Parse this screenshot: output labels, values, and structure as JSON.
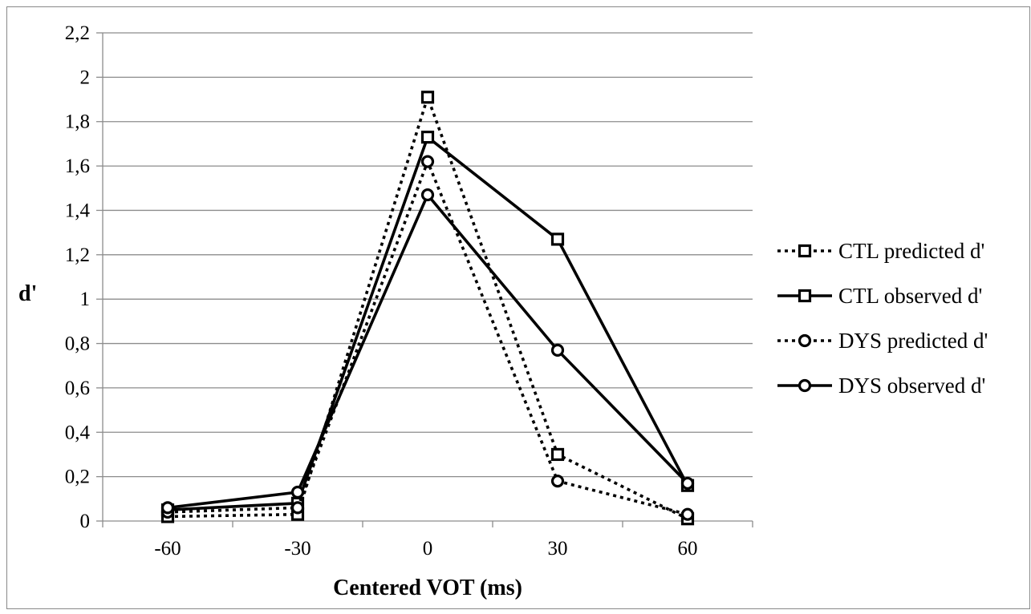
{
  "chart_data": {
    "type": "line",
    "xlabel": "Centered VOT (ms)",
    "ylabel": "d'",
    "categories": [
      "-60",
      "-30",
      "0",
      "30",
      "60"
    ],
    "y_ticks": [
      "0",
      "0,2",
      "0,4",
      "0,6",
      "0,8",
      "1",
      "1,2",
      "1,4",
      "1,6",
      "1,8",
      "2",
      "2,2"
    ],
    "ylim": [
      0,
      2.2
    ],
    "grid": "horizontal",
    "legend_position": "right",
    "series": [
      {
        "name": "CTL predicted d'",
        "values": [
          0.02,
          0.03,
          1.91,
          0.3,
          0.01
        ],
        "line": "dotted",
        "marker": "square"
      },
      {
        "name": "CTL observed d'",
        "values": [
          0.05,
          0.08,
          1.73,
          1.27,
          0.16
        ],
        "line": "solid",
        "marker": "square"
      },
      {
        "name": "DYS predicted d'",
        "values": [
          0.04,
          0.06,
          1.62,
          0.18,
          0.03
        ],
        "line": "dotted",
        "marker": "circle"
      },
      {
        "name": "DYS observed d'",
        "values": [
          0.06,
          0.13,
          1.47,
          0.77,
          0.17
        ],
        "line": "solid",
        "marker": "circle"
      }
    ]
  }
}
